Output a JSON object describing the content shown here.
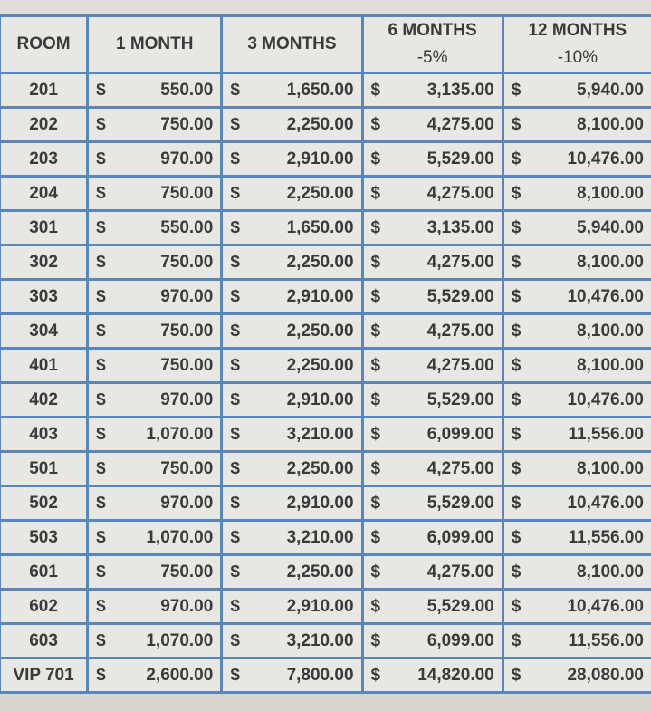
{
  "headers": [
    "ROOM",
    "1 MONTH",
    "3 MONTHS",
    "6 MONTHS",
    "12 MONTHS"
  ],
  "header_sub": [
    "",
    "",
    "",
    "-5%",
    "-10%"
  ],
  "currency": "$",
  "rows": [
    [
      "201",
      "550.00",
      "1,650.00",
      "3,135.00",
      "5,940.00"
    ],
    [
      "202",
      "750.00",
      "2,250.00",
      "4,275.00",
      "8,100.00"
    ],
    [
      "203",
      "970.00",
      "2,910.00",
      "5,529.00",
      "10,476.00"
    ],
    [
      "204",
      "750.00",
      "2,250.00",
      "4,275.00",
      "8,100.00"
    ],
    [
      "301",
      "550.00",
      "1,650.00",
      "3,135.00",
      "5,940.00"
    ],
    [
      "302",
      "750.00",
      "2,250.00",
      "4,275.00",
      "8,100.00"
    ],
    [
      "303",
      "970.00",
      "2,910.00",
      "5,529.00",
      "10,476.00"
    ],
    [
      "304",
      "750.00",
      "2,250.00",
      "4,275.00",
      "8,100.00"
    ],
    [
      "401",
      "750.00",
      "2,250.00",
      "4,275.00",
      "8,100.00"
    ],
    [
      "402",
      "970.00",
      "2,910.00",
      "5,529.00",
      "10,476.00"
    ],
    [
      "403",
      "1,070.00",
      "3,210.00",
      "6,099.00",
      "11,556.00"
    ],
    [
      "501",
      "750.00",
      "2,250.00",
      "4,275.00",
      "8,100.00"
    ],
    [
      "502",
      "970.00",
      "2,910.00",
      "5,529.00",
      "10,476.00"
    ],
    [
      "503",
      "1,070.00",
      "3,210.00",
      "6,099.00",
      "11,556.00"
    ],
    [
      "601",
      "750.00",
      "2,250.00",
      "4,275.00",
      "8,100.00"
    ],
    [
      "602",
      "970.00",
      "2,910.00",
      "5,529.00",
      "10,476.00"
    ],
    [
      "603",
      "1,070.00",
      "3,210.00",
      "6,099.00",
      "11,556.00"
    ],
    [
      "VIP 701",
      "2,600.00",
      "7,800.00",
      "14,820.00",
      "28,080.00"
    ]
  ]
}
